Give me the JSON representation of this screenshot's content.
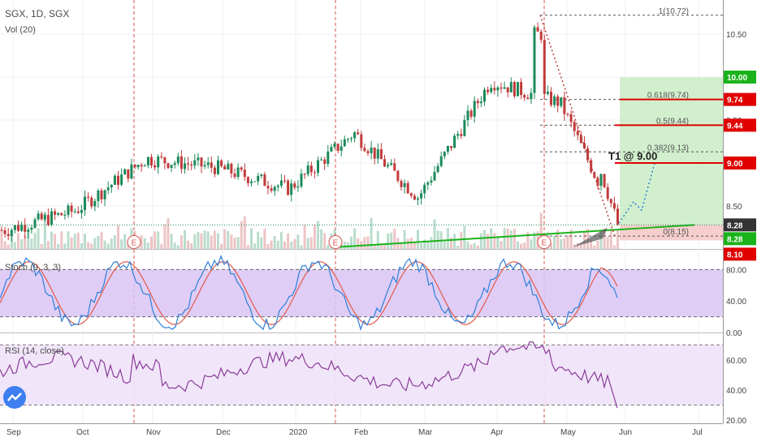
{
  "header": {
    "symbol_line": "SGX, 1D, SGX",
    "volume_label": "Vol (20)"
  },
  "panes": {
    "stoch_label": "Stoch (9, 3, 3)",
    "rsi_label": "RSI (14, close)"
  },
  "colors": {
    "candle_up": "#1b8a5a",
    "candle_down": "#c23b3b",
    "stoch_k": "#2f7fd8",
    "stoch_d": "#e05a4a",
    "rsi_line": "#8a3c9a",
    "stoch_band": "#d9c4f5",
    "rsi_band": "#efe3f8",
    "target_zone": "#c9ecc4",
    "stop_zone": "#f6c9c9",
    "trendline": "#1bb31b",
    "fib_line": "#555555",
    "tag_green": "#1bb31b",
    "tag_red": "#e00000",
    "tag_dark": "#333333",
    "earnings_marker": "#d9534f",
    "logo": "#3d7ff0"
  },
  "chart_data": [
    {
      "type": "candlestick",
      "title": "SGX, 1D, SGX",
      "ylim": [
        8.0,
        10.85
      ],
      "y_ticks": [
        "10.50",
        "10.00",
        "9.50",
        "9.00",
        "8.50"
      ],
      "x_ticks": [
        "Sep",
        "Oct",
        "Nov",
        "Dec",
        "2020",
        "Feb",
        "Mar",
        "Apr",
        "May",
        "Jun",
        "Jul"
      ],
      "price_levels": [
        {
          "label": "10.00",
          "value": 10.0,
          "style": "green"
        },
        {
          "label": "9.74",
          "value": 9.74,
          "style": "red"
        },
        {
          "label": "9.44",
          "value": 9.44,
          "style": "red"
        },
        {
          "label": "9.00",
          "value": 9.0,
          "style": "red"
        },
        {
          "label": "8.28",
          "value": 8.28,
          "style": "dark"
        },
        {
          "label": "8.28",
          "value": 8.28,
          "style": "green"
        },
        {
          "label": "8.10",
          "value": 8.1,
          "style": "red"
        }
      ],
      "fib_levels": [
        {
          "label": "1(10.72)",
          "value": 10.72
        },
        {
          "label": "0.618(9.74)",
          "value": 9.74
        },
        {
          "label": "0.5(9.44)",
          "value": 9.44
        },
        {
          "label": "0.382(9.13)",
          "value": 9.13
        },
        {
          "label": "0(8.15)",
          "value": 8.15
        }
      ],
      "target_annotation": "T1 @ 9.00",
      "earnings_markers": [
        "E",
        "E",
        "E"
      ],
      "anchors": [
        {
          "month": "Sep",
          "close": 8.22
        },
        {
          "month": "Oct",
          "close": 8.45
        },
        {
          "month": "Nov",
          "close": 9.05
        },
        {
          "month": "Dec",
          "close": 8.95
        },
        {
          "month": "2020",
          "close": 8.7
        },
        {
          "month": "Feb",
          "close": 9.35
        },
        {
          "month": "Mar",
          "close": 8.6
        },
        {
          "month": "Apr",
          "close": 9.95
        },
        {
          "month": "May",
          "close": 9.7
        },
        {
          "month": "Jun",
          "close": 8.28
        }
      ]
    },
    {
      "type": "line",
      "title": "Stoch (9, 3, 3)",
      "ylim": [
        0,
        100
      ],
      "y_ticks": [
        "80.00",
        "40.00",
        "0.00"
      ],
      "band": [
        20,
        80
      ],
      "series": [
        {
          "values_note": "oscillating %K/%D"
        }
      ]
    },
    {
      "type": "line",
      "title": "RSI (14, close)",
      "ylim": [
        20,
        75
      ],
      "y_ticks": [
        "60.00",
        "40.00",
        "20.00"
      ],
      "band": [
        30,
        70
      ],
      "last_value": 27
    }
  ]
}
